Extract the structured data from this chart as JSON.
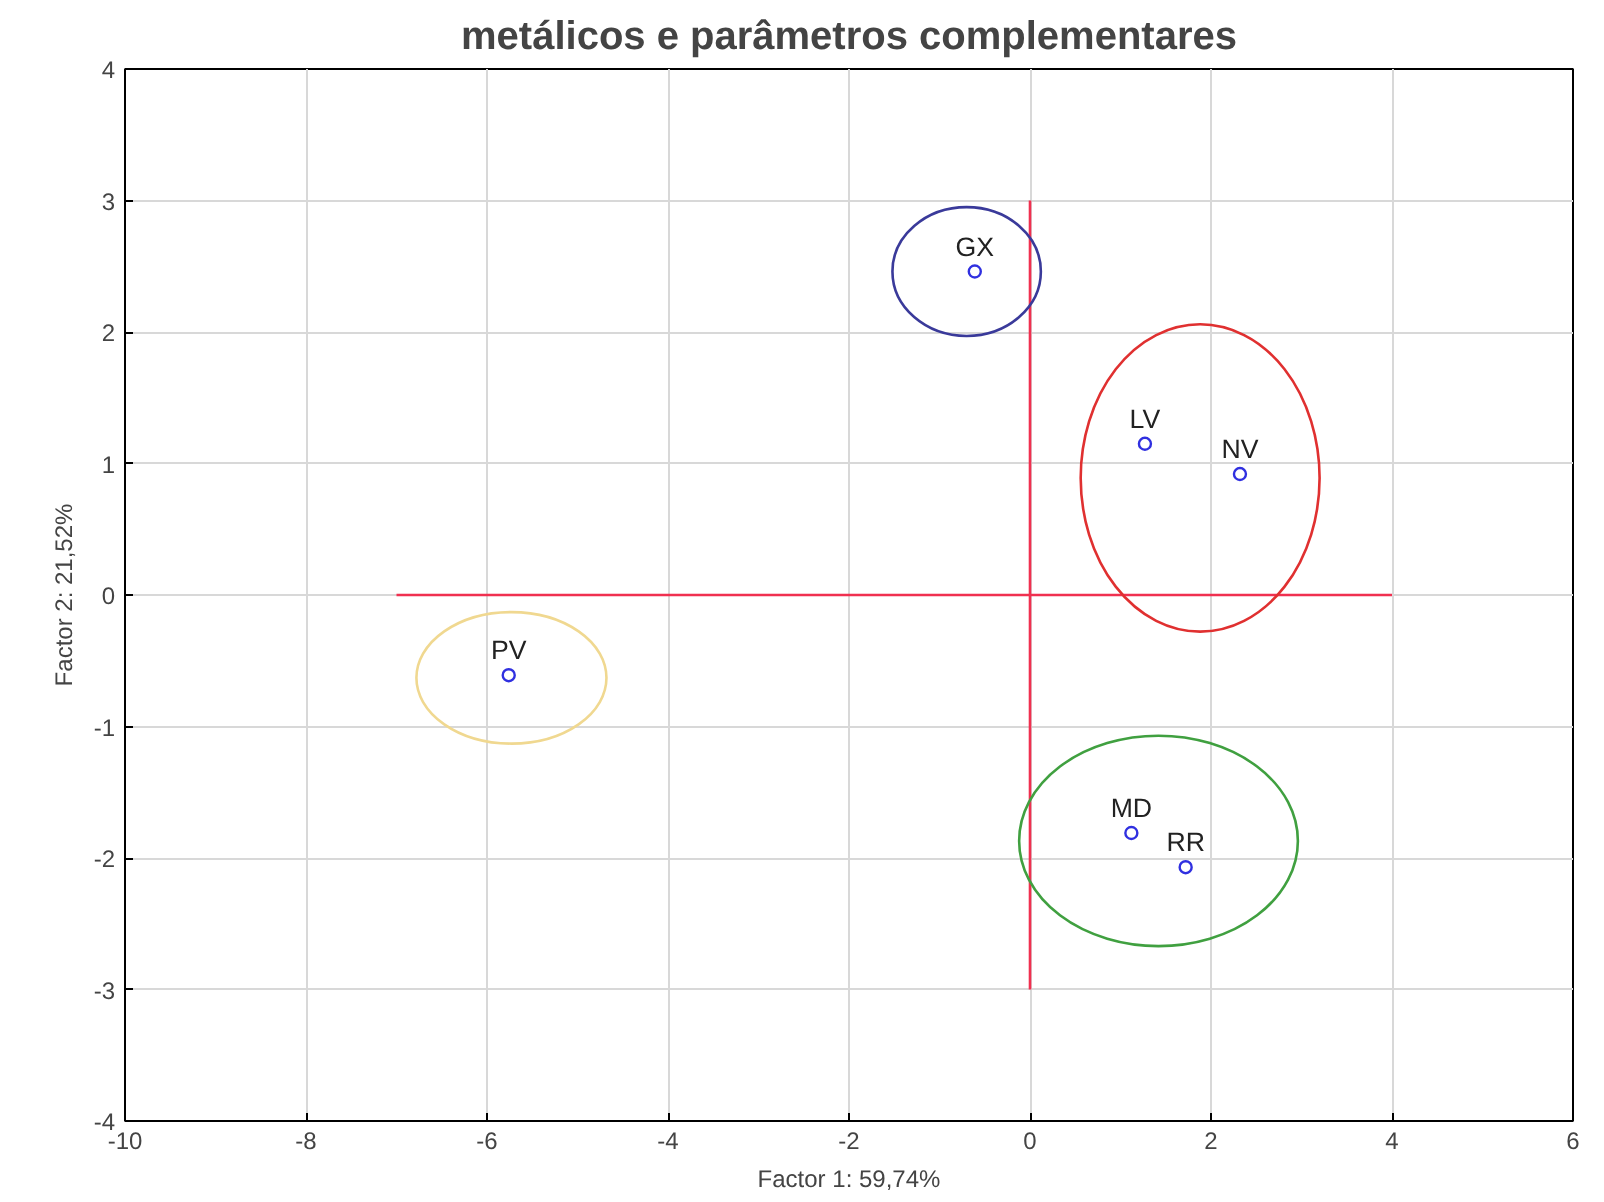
{
  "chart_data": {
    "type": "scatter",
    "title": "metálicos e parâmetros complementares",
    "xlabel": "Factor 1: 59,74%",
    "ylabel": "Factor 2: 21,52%",
    "xlim": [
      -10,
      6
    ],
    "ylim": [
      -4,
      4
    ],
    "xticks": [
      -10,
      -8,
      -6,
      -4,
      -2,
      0,
      2,
      4,
      6
    ],
    "yticks": [
      -4,
      -3,
      -2,
      -1,
      0,
      1,
      2,
      3,
      4
    ],
    "grid": true,
    "series": [
      {
        "type": "line",
        "color": "#f03050",
        "x": [
          -7,
          4
        ],
        "values": [
          0,
          0
        ],
        "marker": "none",
        "line_style": "solid"
      },
      {
        "type": "line",
        "color": "#f03050",
        "x": [
          0,
          0
        ],
        "values": [
          -3,
          3
        ],
        "marker": "none",
        "line_style": "solid"
      },
      {
        "color": "#3030e0",
        "marker": "circle",
        "x": [
          -0.61,
          1.27,
          2.32,
          -5.76,
          1.12,
          1.72
        ],
        "values": [
          2.46,
          1.15,
          0.92,
          -0.61,
          -1.81,
          -2.07
        ]
      }
    ],
    "annotations": [
      {
        "text": "GX",
        "x": -0.61,
        "y": 2.46
      },
      {
        "text": "LV",
        "x": 1.27,
        "y": 1.15
      },
      {
        "text": "NV",
        "x": 2.32,
        "y": 0.92
      },
      {
        "text": "PV",
        "x": -5.76,
        "y": -0.61
      },
      {
        "text": "MD",
        "x": 1.12,
        "y": -1.81
      },
      {
        "text": "RR",
        "x": 1.72,
        "y": -2.07
      }
    ]
  }
}
